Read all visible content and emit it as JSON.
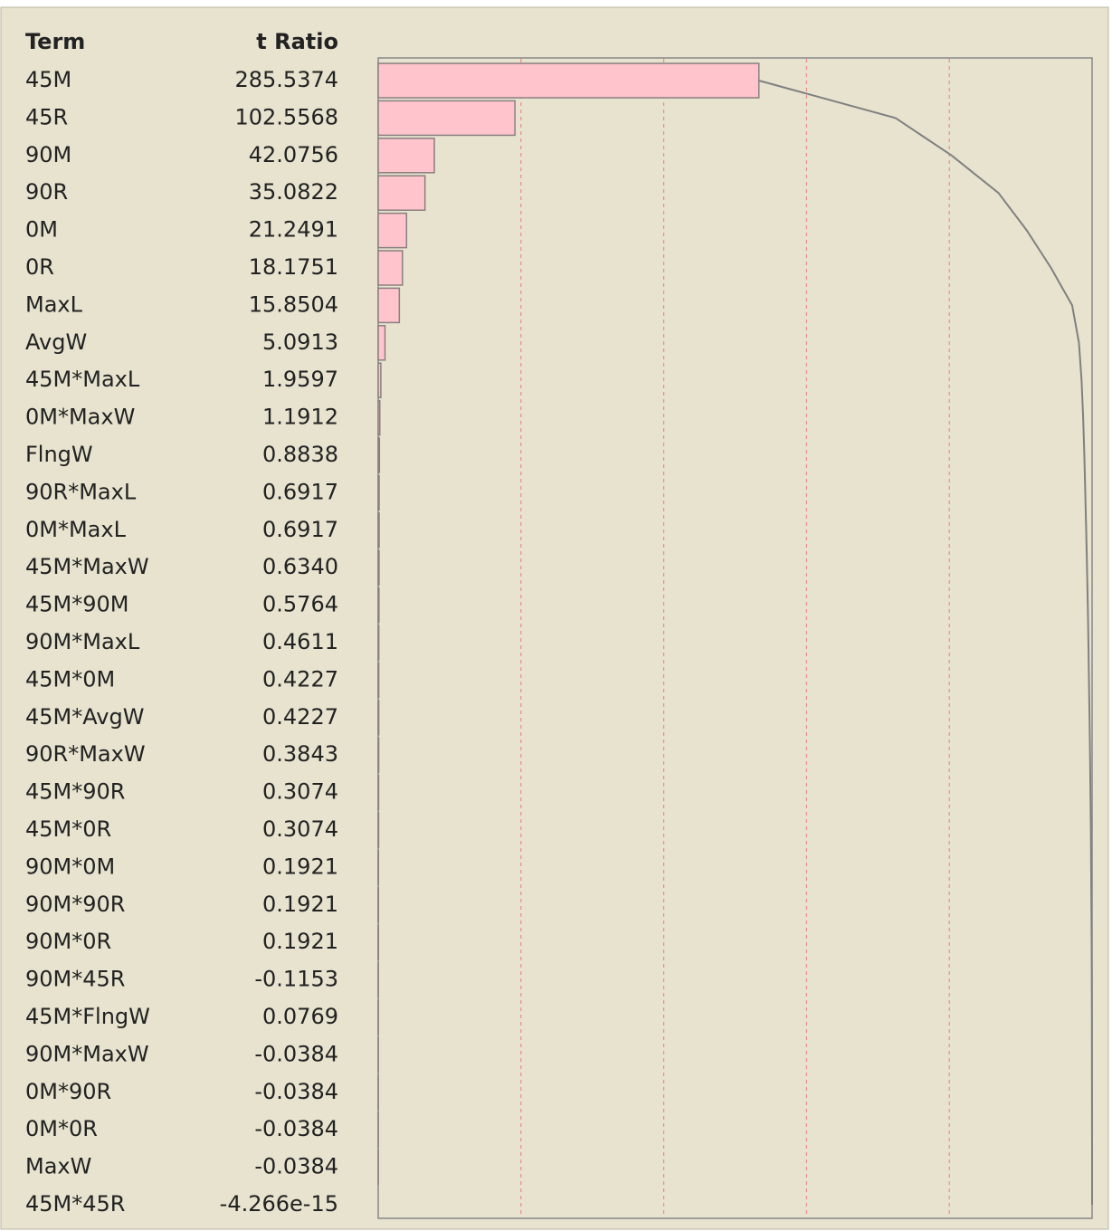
{
  "chart_data": {
    "type": "bar",
    "orientation": "horizontal",
    "columns": [
      "Term",
      "t Ratio"
    ],
    "categories": [
      "45M",
      "45R",
      "90M",
      "90R",
      "0M",
      "0R",
      "MaxL",
      "AvgW",
      "45M*MaxL",
      "0M*MaxW",
      "FlngW",
      "90R*MaxL",
      "0M*MaxL",
      "45M*MaxW",
      "45M*90M",
      "90M*MaxL",
      "45M*0M",
      "45M*AvgW",
      "90R*MaxW",
      "45M*90R",
      "45M*0R",
      "90M*0M",
      "90M*90R",
      "90M*0R",
      "90M*45R",
      "45M*FlngW",
      "90M*MaxW",
      "0M*90R",
      "0M*0R",
      "MaxW",
      "45M*45R"
    ],
    "values": [
      285.5374,
      102.5568,
      42.0756,
      35.0822,
      21.2491,
      18.1751,
      15.8504,
      5.0913,
      1.9597,
      1.1912,
      0.8838,
      0.6917,
      0.6917,
      0.634,
      0.5764,
      0.4611,
      0.4227,
      0.4227,
      0.3843,
      0.3074,
      0.3074,
      0.1921,
      0.1921,
      0.1921,
      -0.1153,
      0.0769,
      -0.0384,
      -0.0384,
      -0.0384,
      -0.0384,
      -4.266e-15
    ],
    "value_labels": [
      "285.5374",
      "102.5568",
      "42.0756",
      "35.0822",
      "21.2491",
      "18.1751",
      "15.8504",
      "5.0913",
      "1.9597",
      "1.1912",
      "0.8838",
      "0.6917",
      "0.6917",
      "0.6340",
      "0.5764",
      "0.4611",
      "0.4227",
      "0.4227",
      "0.3843",
      "0.3074",
      "0.3074",
      "0.1921",
      "0.1921",
      "0.1921",
      "-0.1153",
      "0.0769",
      "-0.0384",
      "-0.0384",
      "-0.0384",
      "-0.0384",
      "-4.266e-15"
    ],
    "xlim": [
      0,
      535.47
    ],
    "xticks": [
      107.09,
      214.19,
      321.28,
      428.38
    ],
    "grid": true,
    "color": "#ffc4cc",
    "edge_color": "#8a7f80",
    "grid_color": "#f08a8a",
    "curve_color": "#808080",
    "cumulative_curve": true
  }
}
